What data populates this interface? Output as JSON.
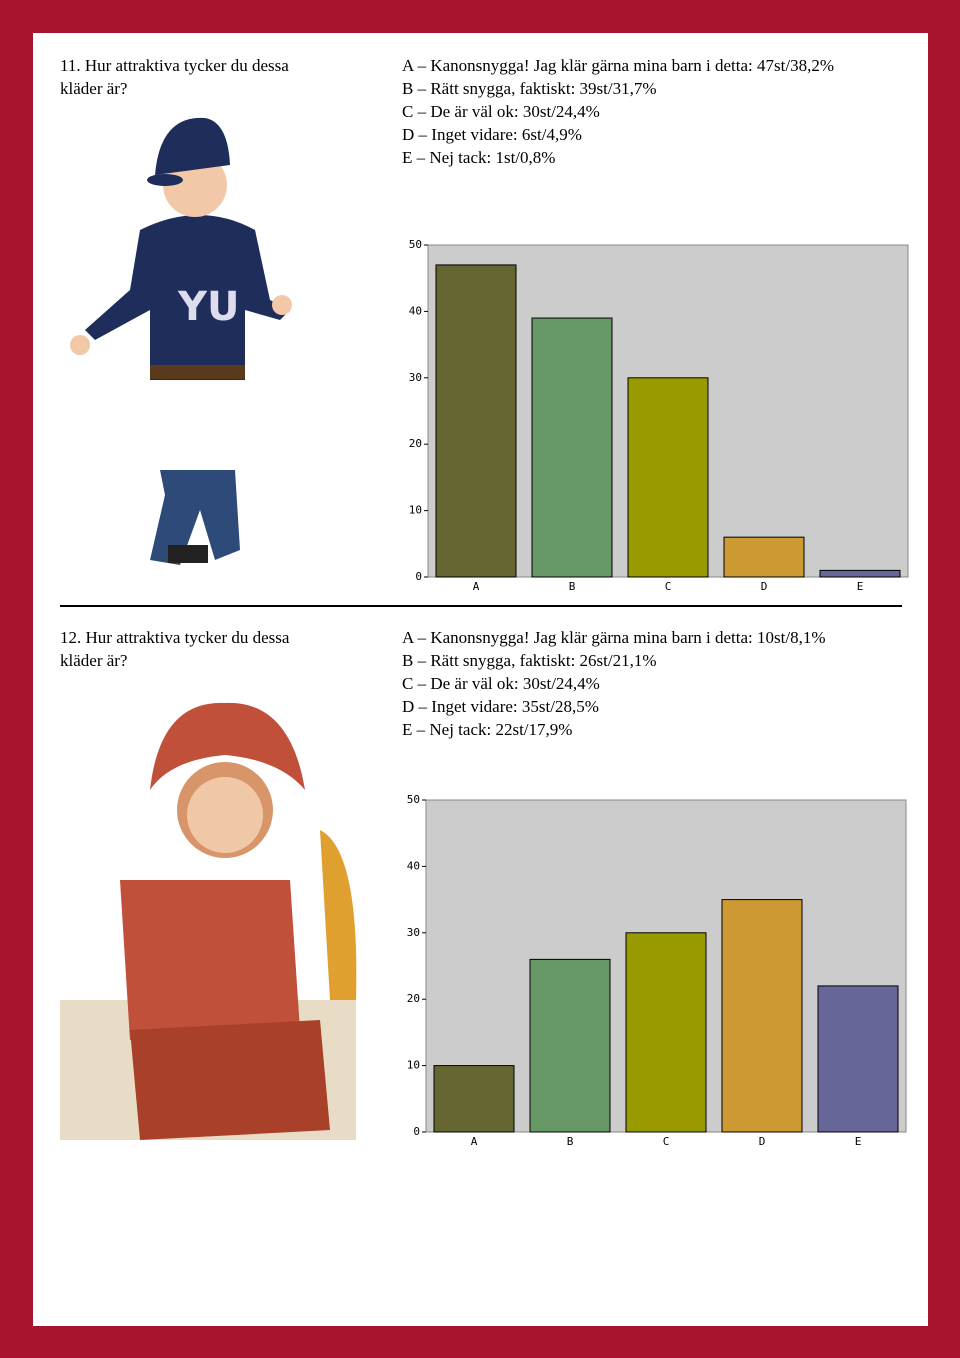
{
  "questions": [
    {
      "title": [
        "11. Hur attraktiva tycker du dessa",
        "kläder är?"
      ],
      "answers": [
        "A – Kanonsnygga! Jag klär gärna mina barn i detta: 47st/38,2%",
        "B – Rätt snygga, faktiskt: 39st/31,7%",
        "C – De är väl ok: 30st/24,4%",
        "D – Inget vidare: 6st/4,9%",
        "E – Nej tack: 1st/0,8%"
      ]
    },
    {
      "title": [
        "12. Hur attraktiva tycker du dessa",
        "kläder är?"
      ],
      "answers": [
        "A – Kanonsnygga! Jag klär gärna mina barn i detta: 10st/8,1%",
        "B – Rätt snygga, faktiskt: 26st/21,1%",
        "C – De är väl ok: 30st/24,4%",
        "D – Inget vidare: 35st/28,5%",
        "E – Nej tack: 22st/17,9%"
      ]
    }
  ],
  "chart_data": [
    {
      "type": "bar",
      "categories": [
        "A",
        "B",
        "C",
        "D",
        "E"
      ],
      "values": [
        47,
        39,
        30,
        6,
        1
      ],
      "colors": [
        "#666633",
        "#669966",
        "#999900",
        "#cc9933",
        "#666699"
      ],
      "ylim": [
        0,
        50
      ],
      "yticks": [
        0,
        10,
        20,
        30,
        40,
        50
      ]
    },
    {
      "type": "bar",
      "categories": [
        "A",
        "B",
        "C",
        "D",
        "E"
      ],
      "values": [
        10,
        26,
        30,
        35,
        22
      ],
      "colors": [
        "#666633",
        "#669966",
        "#999900",
        "#cc9933",
        "#666699"
      ],
      "ylim": [
        0,
        50
      ],
      "yticks": [
        0,
        10,
        20,
        30,
        40,
        50
      ]
    }
  ]
}
